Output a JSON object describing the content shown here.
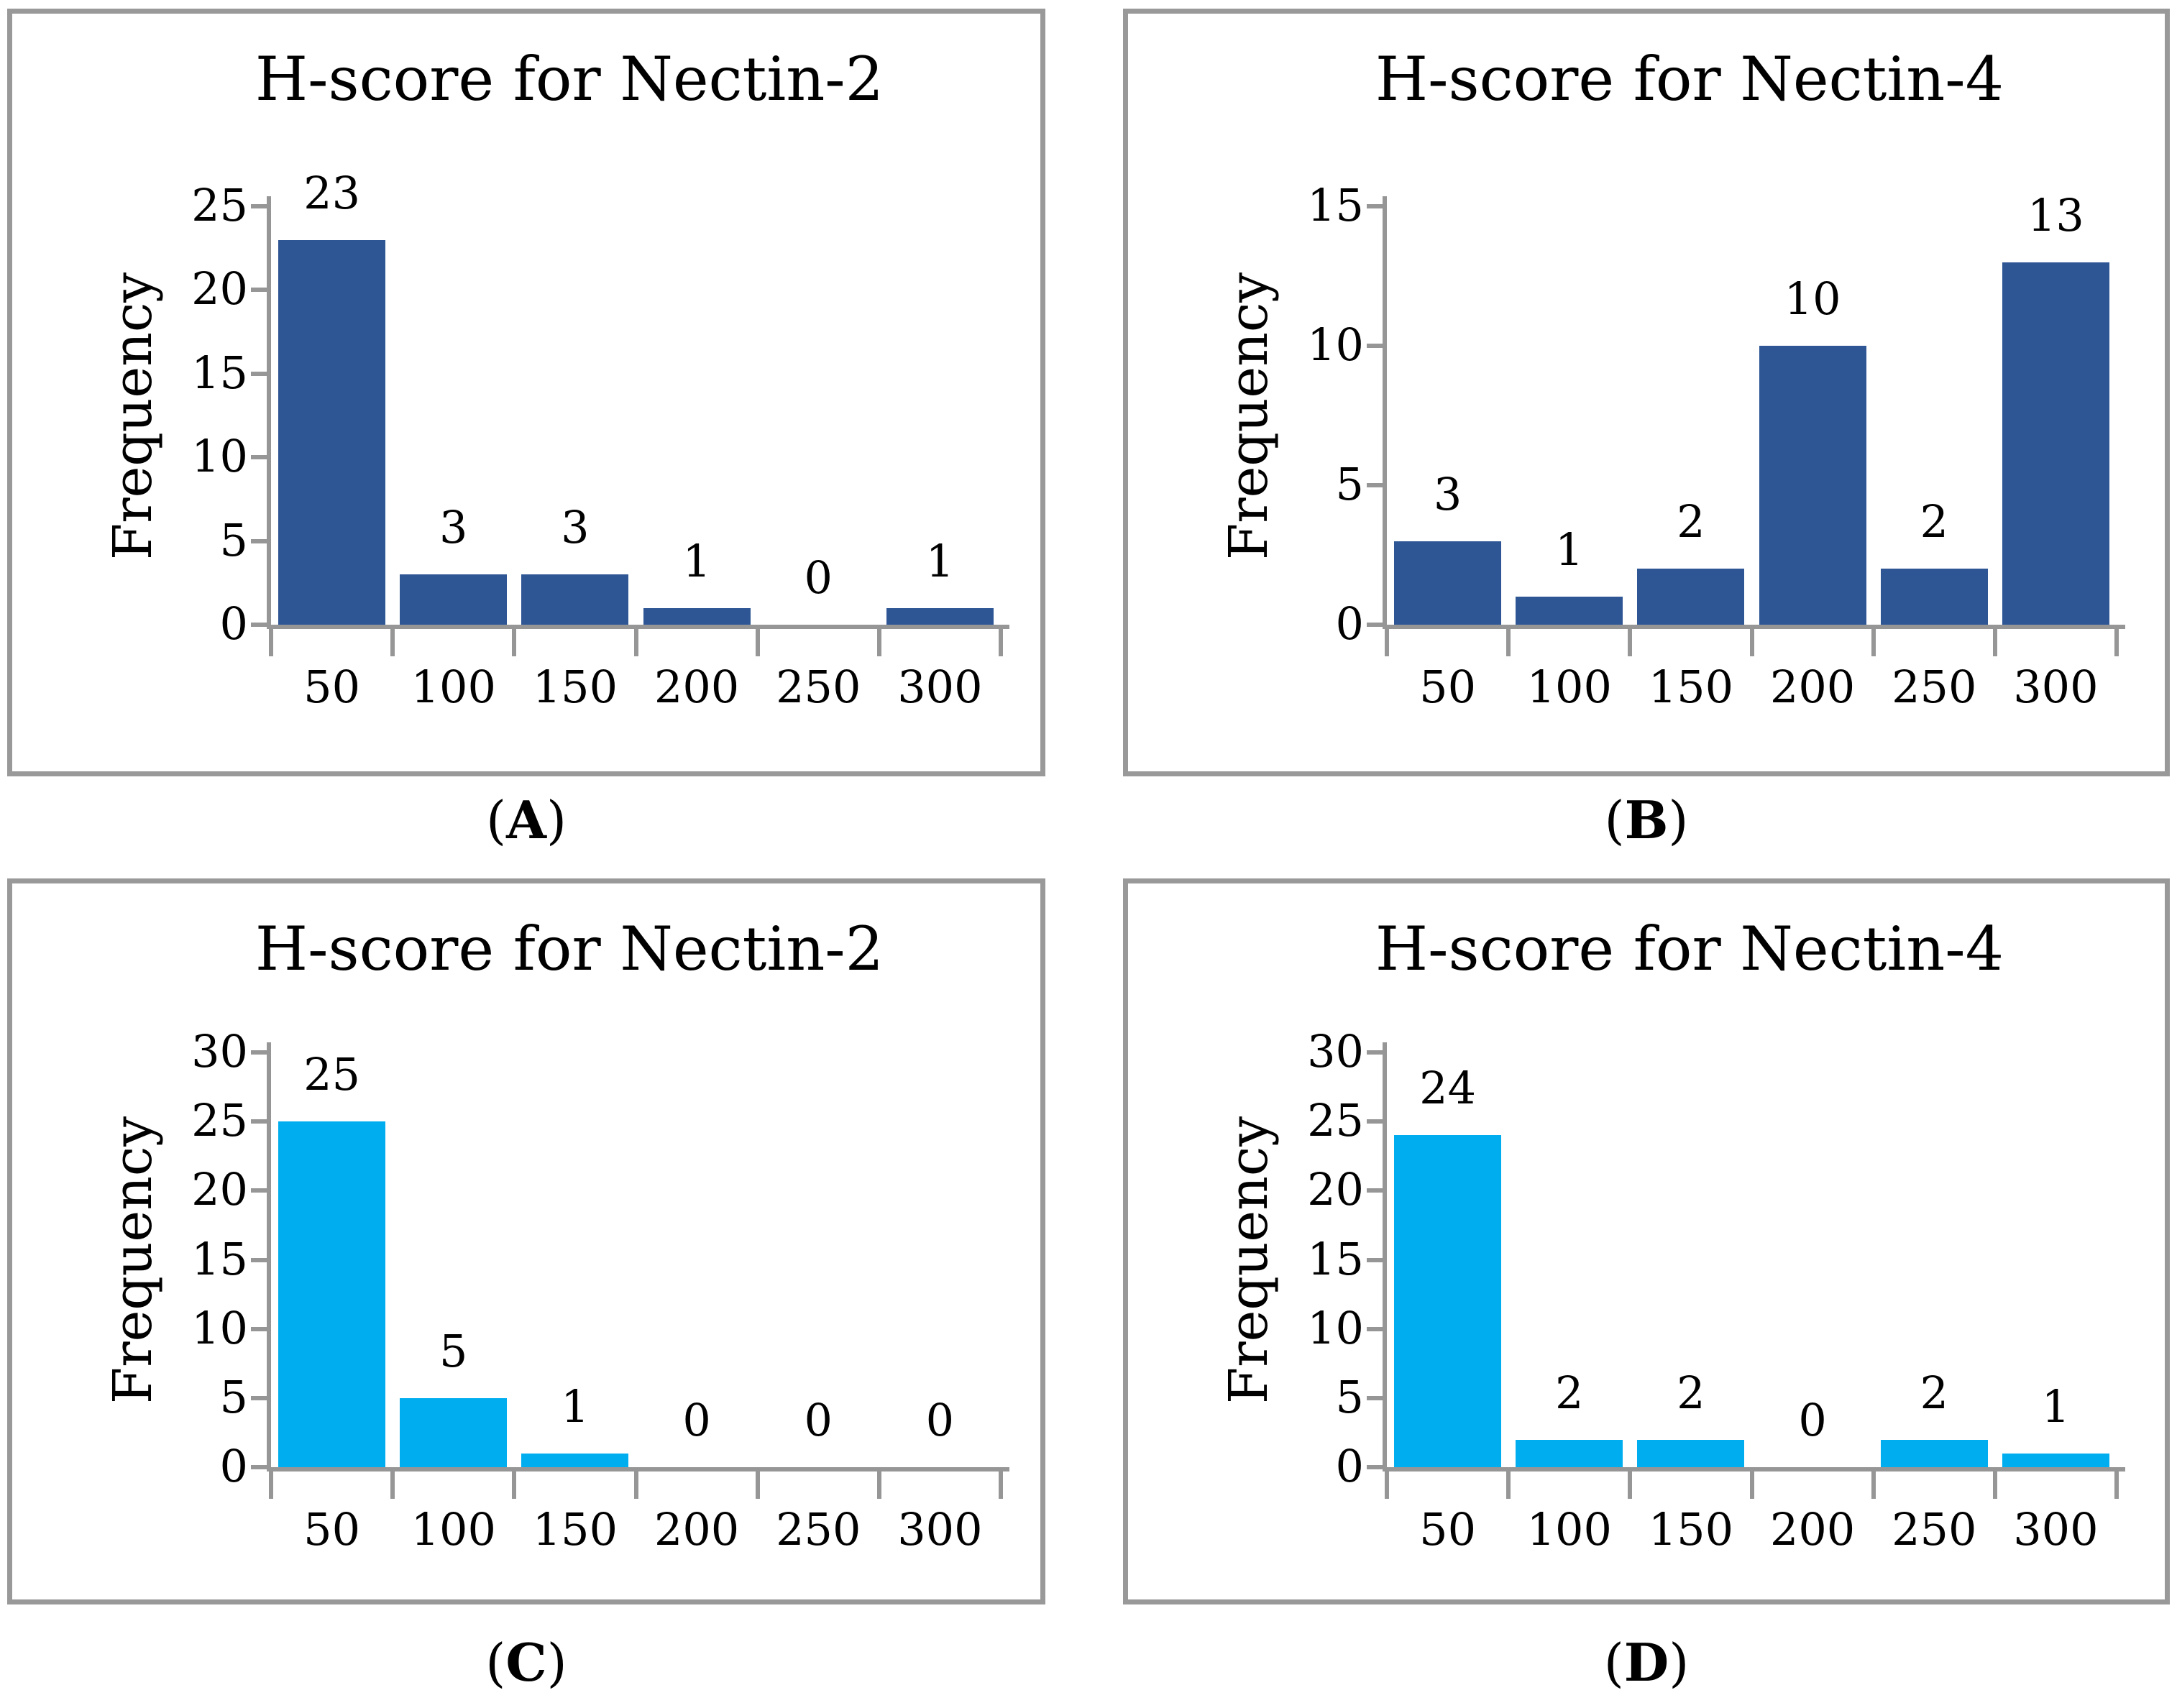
{
  "figure": {
    "background": "#ffffff",
    "panel_border_color": "#999999",
    "axis_color": "#969696",
    "text_color": "#000000",
    "dark_blue": "#2E5695",
    "cyan": "#00AEEF"
  },
  "chart_data": [
    {
      "type": "bar",
      "title": "H-score for Nectin-2",
      "ylabel": "Frequency",
      "xlabel": "",
      "categories": [
        "50",
        "100",
        "150",
        "200",
        "250",
        "300"
      ],
      "values": [
        23,
        3,
        3,
        1,
        0,
        1
      ],
      "data_labels": [
        "23",
        "3",
        "3",
        "1",
        "0",
        "1"
      ],
      "yticks": [
        0,
        5,
        10,
        15,
        20,
        25
      ],
      "ylim": [
        0,
        25
      ],
      "grid": false,
      "legend": "none",
      "bar_color": "#2E5695",
      "caption_open": "(",
      "caption_letter": "A",
      "caption_close": ")"
    },
    {
      "type": "bar",
      "title": "H-score for Nectin-4",
      "ylabel": "Frequency",
      "xlabel": "",
      "categories": [
        "50",
        "100",
        "150",
        "200",
        "250",
        "300"
      ],
      "values": [
        3,
        1,
        2,
        10,
        2,
        13
      ],
      "data_labels": [
        "3",
        "1",
        "2",
        "10",
        "2",
        "13"
      ],
      "yticks": [
        0,
        5,
        10,
        15
      ],
      "ylim": [
        0,
        15
      ],
      "grid": false,
      "legend": "none",
      "bar_color": "#2E5695",
      "caption_open": "(",
      "caption_letter": "B",
      "caption_close": ")"
    },
    {
      "type": "bar",
      "title": "H-score for Nectin-2",
      "ylabel": "Frequency",
      "xlabel": "",
      "categories": [
        "50",
        "100",
        "150",
        "200",
        "250",
        "300"
      ],
      "values": [
        25,
        5,
        1,
        0,
        0,
        0
      ],
      "data_labels": [
        "25",
        "5",
        "1",
        "0",
        "0",
        "0"
      ],
      "yticks": [
        0,
        5,
        10,
        15,
        20,
        25,
        30
      ],
      "ylim": [
        0,
        30
      ],
      "grid": false,
      "legend": "none",
      "bar_color": "#00AEEF",
      "caption_open": "(",
      "caption_letter": "C",
      "caption_close": ")"
    },
    {
      "type": "bar",
      "title": "H-score for Nectin-4",
      "ylabel": "Frequency",
      "xlabel": "",
      "categories": [
        "50",
        "100",
        "150",
        "200",
        "250",
        "300"
      ],
      "values": [
        24,
        2,
        2,
        0,
        2,
        1
      ],
      "data_labels": [
        "24",
        "2",
        "2",
        "0",
        "2",
        "1"
      ],
      "yticks": [
        0,
        5,
        10,
        15,
        20,
        25,
        30
      ],
      "ylim": [
        0,
        30
      ],
      "grid": false,
      "legend": "none",
      "bar_color": "#00AEEF",
      "caption_open": "(",
      "caption_letter": "D",
      "caption_close": ")"
    }
  ]
}
